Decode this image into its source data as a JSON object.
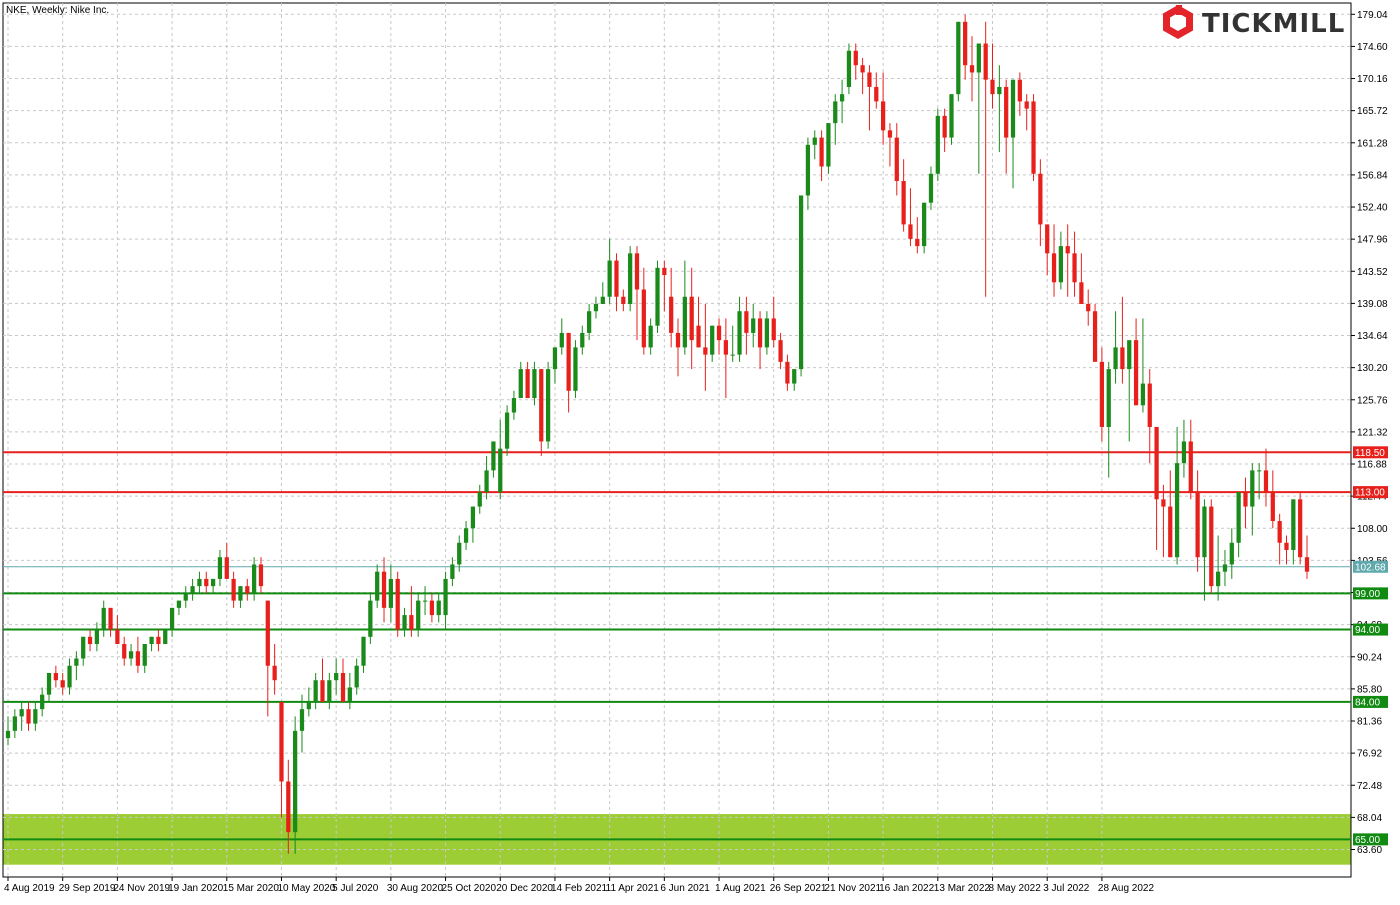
{
  "chart_data": {
    "type": "candlestick",
    "title": "NKE, Weekly:  Nike Inc.",
    "brand": "TICKMILL",
    "y_range": [
      59.8,
      180.6
    ],
    "y_ticks": [
      "179.04",
      "174.60",
      "170.16",
      "165.72",
      "161.28",
      "156.84",
      "152.40",
      "147.96",
      "143.52",
      "139.08",
      "134.64",
      "130.20",
      "125.76",
      "121.32",
      "116.88",
      "112.44",
      "108.00",
      "103.56",
      "99.12",
      "94.68",
      "90.24",
      "85.80",
      "81.36",
      "76.92",
      "72.48",
      "68.04",
      "63.60"
    ],
    "x_ticks": [
      "4 Aug 2019",
      "29 Sep 2019",
      "24 Nov 2019",
      "19 Jan 2020",
      "15 Mar 2020",
      "10 May 2020",
      "5 Jul 2020",
      "30 Aug 2020",
      "25 Oct 2020",
      "20 Dec 2020",
      "14 Feb 2021",
      "11 Apr 2021",
      "6 Jun 2021",
      "1 Aug 2021",
      "26 Sep 2021",
      "21 Nov 2021",
      "16 Jan 2022",
      "13 Mar 2022",
      "8 May 2022",
      "3 Jul 2022",
      "28 Aug 2022"
    ],
    "levels": [
      {
        "value": 118.5,
        "label": "118.50",
        "color": "#e8201c"
      },
      {
        "value": 113.0,
        "label": "113.00",
        "color": "#e8201c"
      },
      {
        "value": 99.0,
        "label": "99.00",
        "color": "#118a11"
      },
      {
        "value": 94.0,
        "label": "94.00",
        "color": "#118a11"
      },
      {
        "value": 84.0,
        "label": "84.00",
        "color": "#118a11"
      },
      {
        "value": 65.0,
        "label": "65.00",
        "color": "#118a11"
      }
    ],
    "current_price": {
      "value": 102.68,
      "label": "102.68",
      "color": "#5fa9ad"
    },
    "support_zone": {
      "from": 61.5,
      "to": 68.5,
      "color": "#9dcd34"
    },
    "candles": [
      [
        79,
        82,
        78,
        80
      ],
      [
        80,
        83,
        79,
        82
      ],
      [
        82,
        84,
        80,
        83
      ],
      [
        83,
        84,
        80,
        81
      ],
      [
        81,
        84,
        80,
        83
      ],
      [
        83,
        86,
        82,
        85
      ],
      [
        85,
        88,
        84,
        88
      ],
      [
        88,
        89,
        86,
        87
      ],
      [
        87,
        88,
        85,
        86
      ],
      [
        86,
        90,
        85,
        89
      ],
      [
        89,
        91,
        87,
        90
      ],
      [
        90,
        93,
        89,
        93
      ],
      [
        93,
        94,
        91,
        92
      ],
      [
        92,
        95,
        91,
        94
      ],
      [
        94,
        98,
        93,
        97
      ],
      [
        97,
        97,
        93,
        94
      ],
      [
        94,
        96,
        92,
        92
      ],
      [
        92,
        93,
        89,
        90
      ],
      [
        90,
        92,
        89,
        91
      ],
      [
        91,
        93,
        88,
        89
      ],
      [
        89,
        92,
        88,
        92
      ],
      [
        92,
        93,
        91,
        93
      ],
      [
        93,
        94,
        91,
        92
      ],
      [
        92,
        94,
        92,
        94
      ],
      [
        94,
        97,
        93,
        97
      ],
      [
        97,
        98,
        96,
        98
      ],
      [
        98,
        100,
        97,
        99
      ],
      [
        99,
        101,
        98,
        100
      ],
      [
        100,
        102,
        99,
        101
      ],
      [
        101,
        102,
        99,
        100
      ],
      [
        100,
        101,
        99,
        101
      ],
      [
        101,
        105,
        100,
        104
      ],
      [
        104,
        106,
        101,
        101
      ],
      [
        101,
        102,
        97,
        98
      ],
      [
        98,
        100,
        97,
        100
      ],
      [
        100,
        101,
        98,
        99
      ],
      [
        99,
        104,
        98,
        103
      ],
      [
        103,
        104,
        99,
        100
      ],
      [
        98,
        98,
        82,
        89
      ],
      [
        89,
        92,
        85,
        87
      ],
      [
        84,
        84,
        68,
        73
      ],
      [
        73,
        76,
        63,
        66
      ],
      [
        66,
        82,
        63,
        80
      ],
      [
        80,
        85,
        77,
        83
      ],
      [
        83,
        86,
        82,
        84
      ],
      [
        84,
        88,
        83,
        87
      ],
      [
        87,
        90,
        84,
        84
      ],
      [
        84,
        88,
        83,
        87
      ],
      [
        87,
        90,
        85,
        88
      ],
      [
        88,
        90,
        85,
        84
      ],
      [
        84,
        88,
        83,
        86
      ],
      [
        86,
        90,
        85,
        89
      ],
      [
        89,
        93,
        88,
        93
      ],
      [
        93,
        99,
        92,
        98
      ],
      [
        98,
        103,
        97,
        102
      ],
      [
        102,
        104,
        95,
        97
      ],
      [
        97,
        103,
        95,
        101
      ],
      [
        101,
        102,
        93,
        94
      ],
      [
        94,
        97,
        93,
        96
      ],
      [
        96,
        100,
        93,
        94
      ],
      [
        94,
        99,
        93,
        98
      ],
      [
        98,
        100,
        96,
        98
      ],
      [
        98,
        99,
        95,
        96
      ],
      [
        96,
        99,
        95,
        98
      ],
      [
        96,
        102,
        94,
        101
      ],
      [
        101,
        104,
        100,
        103
      ],
      [
        103,
        107,
        102,
        106
      ],
      [
        106,
        109,
        105,
        108
      ],
      [
        108,
        111,
        106,
        111
      ],
      [
        111,
        114,
        110,
        113
      ],
      [
        113,
        118,
        112,
        116
      ],
      [
        116,
        120,
        115,
        120
      ],
      [
        113,
        123,
        112,
        119
      ],
      [
        119,
        125,
        118,
        124
      ],
      [
        124,
        127,
        123,
        126
      ],
      [
        126,
        131,
        126,
        130
      ],
      [
        130,
        131,
        126,
        126
      ],
      [
        126,
        131,
        125,
        130
      ],
      [
        130,
        130,
        118,
        120
      ],
      [
        120,
        131,
        119,
        130
      ],
      [
        130,
        133,
        128,
        133
      ],
      [
        133,
        137,
        132,
        135
      ],
      [
        135,
        135,
        124,
        127
      ],
      [
        127,
        134,
        126,
        133
      ],
      [
        133,
        136,
        132,
        135
      ],
      [
        135,
        139,
        134,
        138
      ],
      [
        138,
        140,
        137,
        139
      ],
      [
        139,
        142,
        139,
        140
      ],
      [
        140,
        148,
        139,
        145
      ],
      [
        145,
        146,
        138,
        140
      ],
      [
        140,
        141,
        138,
        139
      ],
      [
        139,
        147,
        138,
        146
      ],
      [
        146,
        147,
        134,
        141
      ],
      [
        141,
        144,
        132,
        133
      ],
      [
        133,
        137,
        132,
        136
      ],
      [
        136,
        145,
        135,
        144
      ],
      [
        144,
        145,
        138,
        143
      ],
      [
        140,
        144,
        133,
        135
      ],
      [
        135,
        137,
        129,
        133
      ],
      [
        133,
        145,
        132,
        140
      ],
      [
        140,
        144,
        130,
        134
      ],
      [
        136,
        140,
        133,
        133
      ],
      [
        133,
        139,
        127,
        132
      ],
      [
        132,
        136,
        131,
        136
      ],
      [
        136,
        137,
        132,
        134
      ],
      [
        134,
        137,
        126,
        132
      ],
      [
        132,
        136,
        131,
        132
      ],
      [
        132,
        140,
        131,
        138
      ],
      [
        138,
        140,
        132,
        135
      ],
      [
        135,
        139,
        133,
        137
      ],
      [
        137,
        138,
        130,
        133
      ],
      [
        133,
        138,
        132,
        137
      ],
      [
        137,
        140,
        133,
        134
      ],
      [
        134,
        135,
        130,
        131
      ],
      [
        131,
        132,
        127,
        128
      ],
      [
        128,
        130,
        127,
        130
      ],
      [
        130,
        154,
        129,
        154
      ],
      [
        154,
        162,
        152,
        161
      ],
      [
        161,
        163,
        159,
        162
      ],
      [
        162,
        163,
        156,
        158
      ],
      [
        158,
        164,
        157,
        164
      ],
      [
        164,
        168,
        161,
        167
      ],
      [
        167,
        170,
        164,
        168
      ],
      [
        169,
        175,
        168,
        174
      ],
      [
        174,
        175,
        170,
        172
      ],
      [
        172,
        173,
        168,
        171
      ],
      [
        171,
        172,
        163,
        169
      ],
      [
        169,
        171,
        166,
        167
      ],
      [
        167,
        171,
        161,
        163
      ],
      [
        163,
        164,
        158,
        162
      ],
      [
        162,
        164,
        154,
        156
      ],
      [
        156,
        159,
        149,
        150
      ],
      [
        150,
        155,
        147,
        148
      ],
      [
        148,
        151,
        146,
        147
      ],
      [
        147,
        153,
        146,
        153
      ],
      [
        153,
        158,
        152,
        157
      ],
      [
        157,
        166,
        156,
        165
      ],
      [
        165,
        166,
        160,
        162
      ],
      [
        162,
        167,
        161,
        168
      ],
      [
        168,
        178,
        167,
        178
      ],
      [
        178,
        179,
        170,
        172
      ],
      [
        172,
        176,
        167,
        171
      ],
      [
        171,
        175,
        157,
        175
      ],
      [
        175,
        178,
        140,
        170
      ],
      [
        170,
        175,
        166,
        168
      ],
      [
        168,
        172,
        160,
        169
      ],
      [
        169,
        170,
        157,
        162
      ],
      [
        162,
        170,
        155,
        170
      ],
      [
        170,
        171,
        165,
        167
      ],
      [
        167,
        168,
        163,
        166
      ],
      [
        167,
        168,
        156,
        157
      ],
      [
        157,
        159,
        147,
        150
      ],
      [
        150,
        150,
        143,
        146
      ],
      [
        146,
        150,
        140,
        142
      ],
      [
        142,
        149,
        141,
        147
      ],
      [
        147,
        150,
        140,
        146
      ],
      [
        146,
        149,
        140,
        142
      ],
      [
        142,
        146,
        140,
        139
      ],
      [
        139,
        141,
        136,
        138
      ],
      [
        138,
        139,
        132,
        131
      ],
      [
        131,
        133,
        120,
        122
      ],
      [
        122,
        131,
        115,
        130
      ],
      [
        130,
        138,
        128,
        133
      ],
      [
        133,
        140,
        128,
        130
      ],
      [
        130,
        133,
        120,
        134
      ],
      [
        134,
        137,
        125,
        125
      ],
      [
        125,
        137,
        124,
        128
      ],
      [
        128,
        130,
        117,
        122
      ],
      [
        122,
        122,
        105,
        112
      ],
      [
        112,
        114,
        104,
        111
      ],
      [
        111,
        116,
        104,
        104
      ],
      [
        104,
        122,
        103,
        117
      ],
      [
        117,
        123,
        115,
        120
      ],
      [
        120,
        123,
        112,
        113
      ],
      [
        113,
        116,
        102,
        104
      ],
      [
        104,
        112,
        98,
        111
      ],
      [
        111,
        112,
        99,
        100
      ],
      [
        100,
        107,
        98,
        102
      ],
      [
        102,
        105,
        100,
        103
      ],
      [
        103,
        108,
        101,
        106
      ],
      [
        106,
        113,
        104,
        113
      ],
      [
        113,
        115,
        108,
        111
      ],
      [
        111,
        117,
        107,
        116
      ],
      [
        116,
        117,
        112,
        116
      ],
      [
        116,
        119,
        111,
        113
      ],
      [
        113,
        116,
        108,
        109
      ],
      [
        109,
        110,
        103,
        106
      ],
      [
        106,
        107,
        103,
        105
      ],
      [
        105,
        112,
        103,
        112
      ],
      [
        112,
        113,
        103,
        104
      ],
      [
        104,
        107,
        101,
        102
      ]
    ]
  }
}
